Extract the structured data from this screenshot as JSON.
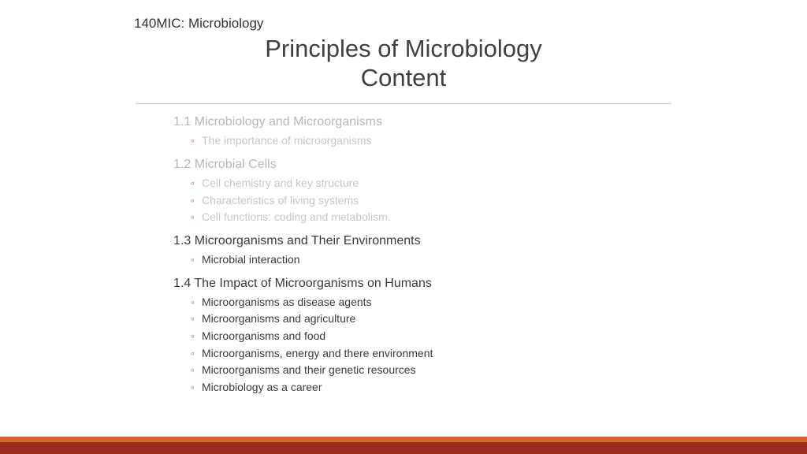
{
  "course_code": "140MIC: Microbiology",
  "title_line1": "Principles of Microbiology",
  "title_line2": "Content",
  "colors": {
    "bullet_accent": "#d6652f",
    "footer_top": "#d6652f",
    "footer_bottom": "#9a2f21",
    "divider": "#c9c9c9",
    "text_normal": "#3b3b3b",
    "text_dim": "#b8b8b8"
  },
  "typography": {
    "title_fontsize": 31,
    "heading_fontsize": 16,
    "sub_fontsize": 14,
    "course_fontsize": 17
  },
  "sections": [
    {
      "dimmed": true,
      "heading": "1.1 Microbiology and Microorganisms",
      "items": [
        "The importance of microorganisms"
      ]
    },
    {
      "dimmed": true,
      "heading": "1.2 Microbial Cells",
      "items": [
        "Cell chemistry and key structure",
        "Characteristics of living systems",
        "Cell functions: coding and metabolism."
      ]
    },
    {
      "dimmed": false,
      "heading": "1.3 Microorganisms and Their Environments",
      "items": [
        "Microbial interaction"
      ]
    },
    {
      "dimmed": false,
      "heading": "1.4 The Impact of Microorganisms on Humans",
      "items": [
        "Microorganisms as disease agents",
        "Microorganisms and agriculture",
        "Microorganisms and food",
        "Microorganisms, energy and there environment",
        "Microorganisms and their genetic resources",
        "Microbiology as a career"
      ]
    }
  ]
}
